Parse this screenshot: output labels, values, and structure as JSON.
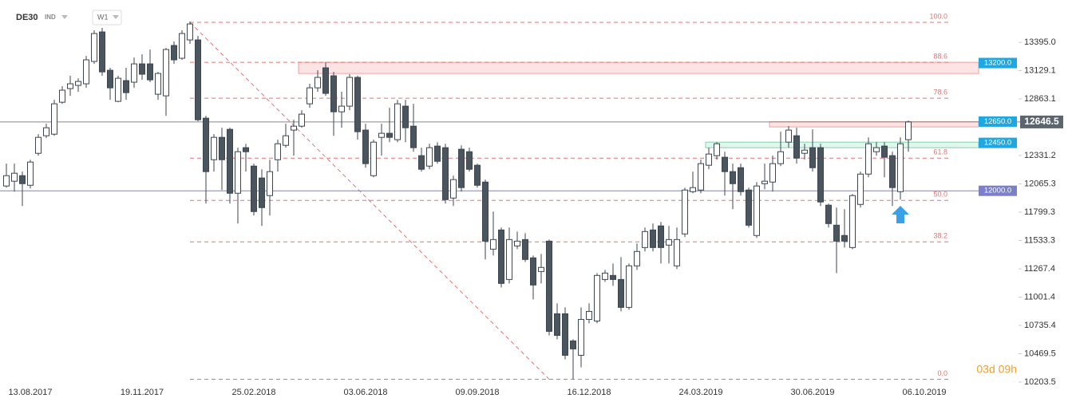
{
  "chart_data": {
    "type": "candlestick",
    "symbol": "DE30",
    "badge": "IND",
    "timeframe": "W1",
    "countdown": "03d 09h",
    "up_color": "#ffffff",
    "down_color": "#4a555e",
    "wick_color": "#3c4650",
    "grid": false,
    "categories": [
      null,
      null,
      null,
      "13.08.2017",
      null,
      null,
      null,
      null,
      null,
      null,
      null,
      null,
      null,
      null,
      null,
      null,
      null,
      "19.11.2017",
      null,
      null,
      null,
      null,
      null,
      null,
      null,
      null,
      null,
      null,
      null,
      null,
      null,
      "25.02.2018",
      null,
      null,
      null,
      null,
      null,
      null,
      null,
      null,
      null,
      null,
      null,
      null,
      null,
      "03.06.2018",
      null,
      null,
      null,
      null,
      null,
      null,
      null,
      null,
      null,
      null,
      null,
      null,
      null,
      "09.09.2018",
      null,
      null,
      null,
      null,
      null,
      null,
      null,
      null,
      null,
      null,
      null,
      null,
      null,
      "16.12.2018",
      null,
      null,
      null,
      null,
      null,
      null,
      null,
      null,
      null,
      null,
      null,
      null,
      null,
      "24.03.2019",
      null,
      null,
      null,
      null,
      null,
      null,
      null,
      null,
      null,
      null,
      null,
      null,
      null,
      "30.06.2019",
      null,
      null,
      null,
      null,
      null,
      null,
      null,
      null,
      null,
      null,
      null,
      null,
      null,
      "06.10.2019"
    ],
    "open": [
      12045,
      12090,
      12142,
      12052,
      12352,
      12517,
      12532,
      12832,
      12960,
      12990,
      13005,
      13215,
      13492,
      13132,
      12840,
      13035,
      13020,
      13192,
      13192,
      12907,
      12892,
      13365,
      13245,
      13417,
      13417,
      12682,
      12292,
      12502,
      12577,
      11977,
      12405,
      12232,
      12120,
      11955,
      12292,
      12427,
      12570,
      12607,
      12817,
      12967,
      13155,
      13080,
      12742,
      12795,
      13065,
      12570,
      12142,
      12502,
      12540,
      12480,
      12795,
      12607,
      12330,
      12232,
      12420,
      12405,
      11932,
      12390,
      12367,
      12240,
      12082,
      11452,
      11632,
      11167,
      11482,
      11542,
      11370,
      11242,
      11527,
      10845,
      10845,
      10590,
      10455,
      10792,
      10777,
      11167,
      11205,
      11167,
      10905,
      11295,
      11467,
      11632,
      11670,
      11490,
      11295,
      11595,
      11992,
      12007,
      12240,
      12330,
      12315,
      12180,
      12217,
      12007,
      11580,
      12067,
      12082,
      12255,
      12457,
      12517,
      12352,
      12405,
      12405,
      11865,
      11677,
      11580,
      11467,
      11872,
      12157,
      12367,
      12420,
      12330,
      11992,
      12480,
      null,
      null
    ],
    "high": [
      12255,
      12255,
      12180,
      12292,
      12532,
      12630,
      12855,
      12982,
      13080,
      13057,
      13267,
      13507,
      13530,
      13155,
      13080,
      13155,
      13252,
      13282,
      13327,
      13117,
      13342,
      13402,
      13507,
      13590,
      13455,
      12705,
      12532,
      12592,
      12592,
      12405,
      12442,
      12255,
      12202,
      12292,
      12480,
      12630,
      12667,
      12757,
      13005,
      13132,
      13207,
      13117,
      12930,
      13095,
      13080,
      12630,
      12480,
      12630,
      12780,
      12855,
      12855,
      12817,
      12405,
      12442,
      12457,
      12442,
      12142,
      12427,
      12405,
      12255,
      12105,
      11805,
      11655,
      11655,
      11617,
      11602,
      11392,
      11407,
      11542,
      10942,
      10905,
      10605,
      10905,
      10942,
      11227,
      11257,
      11317,
      11377,
      11317,
      11505,
      11655,
      11692,
      11707,
      11670,
      11655,
      12030,
      12180,
      12292,
      12405,
      12457,
      12367,
      12255,
      12255,
      12030,
      12082,
      12255,
      12330,
      12555,
      12607,
      12592,
      12442,
      12577,
      12442,
      11880,
      11842,
      11827,
      11970,
      12180,
      12502,
      12457,
      12457,
      12367,
      12502,
      12660,
      null,
      null
    ],
    "low": [
      12030,
      11992,
      11857,
      12022,
      12330,
      12495,
      12517,
      12817,
      12892,
      12930,
      12967,
      13192,
      13080,
      12855,
      12832,
      12855,
      12967,
      13042,
      13020,
      12855,
      12705,
      13192,
      13230,
      13380,
      12652,
      11880,
      12180,
      12007,
      11880,
      11692,
      12180,
      11767,
      11670,
      11767,
      12180,
      12405,
      12330,
      12592,
      12780,
      12930,
      12892,
      12517,
      12592,
      12757,
      12480,
      12217,
      12127,
      12330,
      12457,
      12457,
      12457,
      12367,
      12180,
      12202,
      12255,
      11880,
      11857,
      11992,
      12180,
      12030,
      11355,
      11392,
      11092,
      11130,
      11452,
      11332,
      10980,
      11130,
      10642,
      10605,
      10417,
      10230,
      10342,
      10755,
      10755,
      11145,
      11107,
      10867,
      10882,
      11257,
      11430,
      11430,
      11317,
      11317,
      11265,
      11565,
      11977,
      11977,
      12202,
      12292,
      11955,
      11827,
      11955,
      11655,
      11557,
      12015,
      11992,
      12232,
      12405,
      12255,
      12292,
      12180,
      11857,
      11655,
      11227,
      11467,
      11452,
      11842,
      12127,
      12330,
      12127,
      11857,
      11917,
      12367,
      null,
      null
    ],
    "close": [
      12142,
      12165,
      12067,
      12270,
      12502,
      12592,
      12817,
      12945,
      13005,
      13027,
      13230,
      13477,
      13117,
      12967,
      13057,
      12922,
      13192,
      13095,
      13042,
      13102,
      13327,
      13230,
      13477,
      13567,
      12667,
      12180,
      12502,
      12292,
      11977,
      12367,
      12367,
      11805,
      11842,
      12180,
      12442,
      12517,
      12607,
      12720,
      12967,
      13065,
      12915,
      12742,
      12795,
      13065,
      12555,
      12255,
      12457,
      12540,
      12502,
      12817,
      12592,
      12405,
      12202,
      12405,
      12277,
      11917,
      12105,
      12030,
      12202,
      12052,
      11527,
      11542,
      11130,
      11542,
      11527,
      11355,
      11115,
      11280,
      10680,
      10642,
      10455,
      10515,
      10792,
      10867,
      11205,
      11227,
      11167,
      10905,
      11295,
      11430,
      11617,
      11467,
      11467,
      11542,
      11542,
      12007,
      12030,
      12255,
      12345,
      12442,
      12180,
      12067,
      11992,
      11677,
      12045,
      12090,
      12255,
      12367,
      12570,
      12307,
      12382,
      12217,
      11895,
      11692,
      11527,
      11527,
      11955,
      12157,
      12442,
      12405,
      12315,
      12030,
      12442,
      12646.5,
      null,
      null
    ],
    "ylim": [
      10166,
      13792
    ],
    "yticks": [
      {
        "value": 13395,
        "label": "13395.0"
      },
      {
        "value": 13129.1,
        "label": "13129.1"
      },
      {
        "value": 12863.1,
        "label": "12863.1"
      },
      {
        "value": 12331.2,
        "label": "12331.2"
      },
      {
        "value": 12065.3,
        "label": "12065.3"
      },
      {
        "value": 11799.3,
        "label": "11799.3"
      },
      {
        "value": 11533.3,
        "label": "11533.3"
      },
      {
        "value": 11267.4,
        "label": "11267.4"
      },
      {
        "value": 11001.4,
        "label": "11001.4"
      },
      {
        "value": 10735.4,
        "label": "10735.4"
      },
      {
        "value": 10469.5,
        "label": "10469.5"
      },
      {
        "value": 10203.5,
        "label": "10203.5"
      }
    ],
    "fib_levels": [
      {
        "ratio": "100.0",
        "price": 13582
      },
      {
        "ratio": "88.6",
        "price": 13207
      },
      {
        "ratio": "78.6",
        "price": 12870
      },
      {
        "ratio": "61.8",
        "price": 12307
      },
      {
        "ratio": "50.0",
        "price": 11910
      },
      {
        "ratio": "38.2",
        "price": 11520
      },
      {
        "ratio": "0.0",
        "price": 10230
      }
    ],
    "fib_color": "#e57373",
    "trendline": {
      "start": 23,
      "start_price": 13582,
      "end": 68,
      "end_price": 10230
    },
    "zones": [
      {
        "start": 37,
        "from": 13102,
        "to": 13207,
        "fill": "#fde4e4",
        "stroke": "#f2a0a0"
      },
      {
        "start": 96,
        "from": 12600,
        "to": 12650,
        "fill": "#fde4e4",
        "stroke": "#f2a0a0"
      },
      {
        "start": 88,
        "from": 12405,
        "to": 12457,
        "fill": "#e3f6ee",
        "stroke": "#7fd3ad"
      }
    ],
    "levels": [
      {
        "value": 13200,
        "label": "13200.0",
        "color": "#1ea7e1"
      },
      {
        "value": 12650,
        "label": "12650.0",
        "color": "#1ea7e1"
      },
      {
        "value": 12450,
        "label": "12450.0",
        "color": "#1ea7e1"
      },
      {
        "value": 12000,
        "label": "12000.0",
        "color": "#7b80c8",
        "line": true
      }
    ],
    "current_price": 12646.5,
    "current_color": "#5b656e"
  }
}
